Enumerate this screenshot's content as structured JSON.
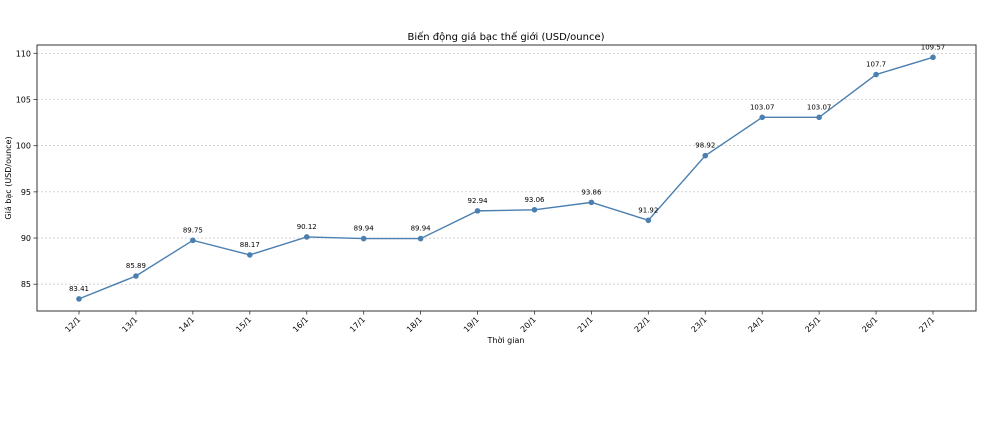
{
  "chart_data": {
    "type": "line",
    "title": "Biến động giá bạc thế giới (USD/ounce)",
    "xlabel": "Thời gian",
    "ylabel": "Giá bạc (USD/ounce)",
    "categories": [
      "12/1",
      "13/1",
      "14/1",
      "15/1",
      "16/1",
      "17/1",
      "18/1",
      "19/1",
      "20/1",
      "21/1",
      "22/1",
      "23/1",
      "24/1",
      "25/1",
      "26/1",
      "27/1"
    ],
    "values": [
      83.41,
      85.89,
      89.75,
      88.17,
      90.12,
      89.94,
      89.94,
      92.94,
      93.06,
      93.86,
      91.92,
      98.92,
      103.07,
      103.07,
      107.7,
      109.57
    ],
    "data_labels": [
      "83.41",
      "85.89",
      "89.75",
      "88.17",
      "90.12",
      "89.94",
      "89.94",
      "92.94",
      "93.06",
      "93.86",
      "91.92",
      "98.92",
      "103.07",
      "103.07",
      "107.7",
      "109.57"
    ],
    "yticks": [
      85,
      90,
      95,
      100,
      105,
      110
    ],
    "ylim": [
      82.1,
      110.9
    ],
    "grid": "horizontal-dashed",
    "legend": "none",
    "line_color": "#4a7fb0"
  }
}
